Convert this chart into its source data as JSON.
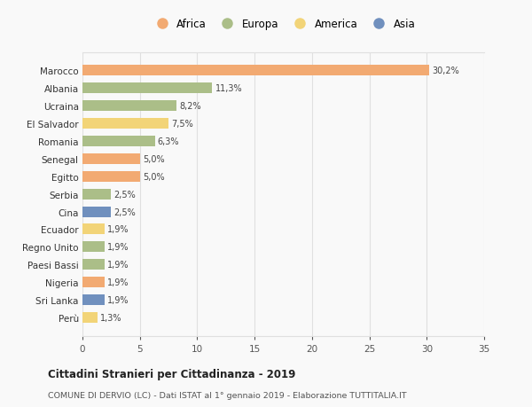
{
  "countries": [
    "Marocco",
    "Albania",
    "Ucraina",
    "El Salvador",
    "Romania",
    "Senegal",
    "Egitto",
    "Serbia",
    "Cina",
    "Ecuador",
    "Regno Unito",
    "Paesi Bassi",
    "Nigeria",
    "Sri Lanka",
    "Perù"
  ],
  "values": [
    30.2,
    11.3,
    8.2,
    7.5,
    6.3,
    5.0,
    5.0,
    2.5,
    2.5,
    1.9,
    1.9,
    1.9,
    1.9,
    1.9,
    1.3
  ],
  "labels": [
    "30,2%",
    "11,3%",
    "8,2%",
    "7,5%",
    "6,3%",
    "5,0%",
    "5,0%",
    "2,5%",
    "2,5%",
    "1,9%",
    "1,9%",
    "1,9%",
    "1,9%",
    "1,9%",
    "1,3%"
  ],
  "colors": [
    "#F2AA72",
    "#ABBE88",
    "#ABBE88",
    "#F2D478",
    "#ABBE88",
    "#F2AA72",
    "#F2AA72",
    "#ABBE88",
    "#7090BE",
    "#F2D478",
    "#ABBE88",
    "#ABBE88",
    "#F2AA72",
    "#7090BE",
    "#F2D478"
  ],
  "continent_colors": {
    "Africa": "#F2AA72",
    "Europa": "#ABBE88",
    "America": "#F2D478",
    "Asia": "#7090BE"
  },
  "title": "Cittadini Stranieri per Cittadinanza - 2019",
  "subtitle": "COMUNE DI DERVIO (LC) - Dati ISTAT al 1° gennaio 2019 - Elaborazione TUTTITALIA.IT",
  "xlim": [
    0,
    35
  ],
  "xticks": [
    0,
    5,
    10,
    15,
    20,
    25,
    30,
    35
  ],
  "background_color": "#f9f9f9",
  "grid_color": "#e0e0e0",
  "bar_height": 0.6
}
